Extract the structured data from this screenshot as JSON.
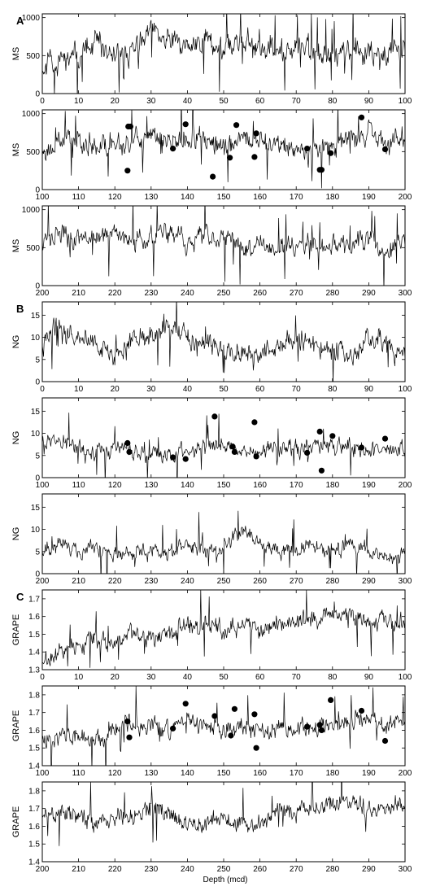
{
  "x_axis_label": "Depth (mcd)",
  "chart_data": [
    {
      "type": "line",
      "group": "A",
      "ylabel": "MS",
      "xlim": [
        0,
        100
      ],
      "ylim": [
        0,
        1050
      ],
      "yticks": [
        0,
        500,
        1000
      ],
      "xticks": [
        0,
        10,
        20,
        30,
        40,
        50,
        60,
        70,
        80,
        90,
        100
      ],
      "seed": 11,
      "base": [
        [
          0,
          380
        ],
        [
          5,
          420
        ],
        [
          10,
          500
        ],
        [
          15,
          640
        ],
        [
          20,
          520
        ],
        [
          25,
          540
        ],
        [
          30,
          760
        ],
        [
          35,
          720
        ],
        [
          40,
          600
        ],
        [
          45,
          720
        ],
        [
          50,
          560
        ],
        [
          55,
          680
        ],
        [
          60,
          600
        ],
        [
          65,
          520
        ],
        [
          70,
          640
        ],
        [
          75,
          560
        ],
        [
          80,
          480
        ],
        [
          85,
          620
        ],
        [
          90,
          520
        ],
        [
          95,
          560
        ],
        [
          100,
          600
        ]
      ],
      "noise": 170,
      "spike_prob": 0.06,
      "spike_amp": 360,
      "markers": []
    },
    {
      "type": "line",
      "group": "A",
      "ylabel": "MS",
      "xlim": [
        100,
        200
      ],
      "ylim": [
        0,
        1050
      ],
      "yticks": [
        0,
        500,
        1000
      ],
      "xticks": [
        100,
        110,
        120,
        130,
        140,
        150,
        160,
        170,
        180,
        190,
        200
      ],
      "seed": 23,
      "base": [
        [
          100,
          500
        ],
        [
          105,
          620
        ],
        [
          110,
          700
        ],
        [
          115,
          560
        ],
        [
          120,
          600
        ],
        [
          125,
          640
        ],
        [
          130,
          700
        ],
        [
          135,
          620
        ],
        [
          140,
          720
        ],
        [
          145,
          620
        ],
        [
          150,
          560
        ],
        [
          155,
          680
        ],
        [
          160,
          640
        ],
        [
          165,
          600
        ],
        [
          170,
          560
        ],
        [
          175,
          520
        ],
        [
          180,
          560
        ],
        [
          185,
          680
        ],
        [
          190,
          720
        ],
        [
          195,
          620
        ],
        [
          200,
          680
        ]
      ],
      "noise": 160,
      "spike_prob": 0.05,
      "spike_amp": 330,
      "markers": [
        [
          123.5,
          250
        ],
        [
          123.7,
          830
        ],
        [
          124.3,
          830
        ],
        [
          136,
          540
        ],
        [
          139.5,
          860
        ],
        [
          147,
          170
        ],
        [
          151.7,
          420
        ],
        [
          153.5,
          850
        ],
        [
          158.5,
          430
        ],
        [
          159,
          740
        ],
        [
          173,
          540
        ],
        [
          176.5,
          260
        ],
        [
          177,
          260
        ],
        [
          179.5,
          480
        ],
        [
          188,
          950
        ],
        [
          194.5,
          530
        ]
      ]
    },
    {
      "type": "line",
      "group": "A",
      "ylabel": "MS",
      "xlim": [
        200,
        300
      ],
      "ylim": [
        0,
        1050
      ],
      "yticks": [
        0,
        500,
        1000
      ],
      "xticks": [
        200,
        210,
        220,
        230,
        240,
        250,
        260,
        270,
        280,
        290,
        300
      ],
      "seed": 37,
      "base": [
        [
          200,
          620
        ],
        [
          205,
          700
        ],
        [
          210,
          600
        ],
        [
          215,
          640
        ],
        [
          220,
          660
        ],
        [
          225,
          600
        ],
        [
          230,
          660
        ],
        [
          235,
          680
        ],
        [
          240,
          560
        ],
        [
          245,
          660
        ],
        [
          250,
          600
        ],
        [
          255,
          520
        ],
        [
          260,
          560
        ],
        [
          265,
          500
        ],
        [
          270,
          520
        ],
        [
          275,
          560
        ],
        [
          280,
          600
        ],
        [
          285,
          520
        ],
        [
          290,
          640
        ],
        [
          295,
          380
        ],
        [
          300,
          640
        ]
      ],
      "noise": 150,
      "spike_prob": 0.06,
      "spike_amp": 380,
      "markers": []
    },
    {
      "type": "line",
      "group": "B",
      "ylabel": "NG",
      "xlim": [
        0,
        100
      ],
      "ylim": [
        0,
        18
      ],
      "yticks": [
        0,
        5,
        10,
        15
      ],
      "xticks": [
        0,
        10,
        20,
        30,
        40,
        50,
        60,
        70,
        80,
        90,
        100
      ],
      "seed": 41,
      "base": [
        [
          0,
          8
        ],
        [
          3,
          12
        ],
        [
          8,
          11
        ],
        [
          12,
          10
        ],
        [
          15,
          8
        ],
        [
          20,
          6
        ],
        [
          25,
          10
        ],
        [
          30,
          10
        ],
        [
          35,
          12
        ],
        [
          40,
          10
        ],
        [
          45,
          8
        ],
        [
          50,
          8
        ],
        [
          55,
          6
        ],
        [
          60,
          6
        ],
        [
          65,
          8
        ],
        [
          70,
          10
        ],
        [
          75,
          8
        ],
        [
          80,
          7
        ],
        [
          85,
          6
        ],
        [
          90,
          10
        ],
        [
          95,
          8
        ],
        [
          100,
          6
        ]
      ],
      "noise": 2.6,
      "spike_prob": 0.04,
      "spike_amp": 5,
      "markers": []
    },
    {
      "type": "line",
      "group": "B",
      "ylabel": "NG",
      "xlim": [
        100,
        200
      ],
      "ylim": [
        0,
        18
      ],
      "yticks": [
        0,
        5,
        10,
        15
      ],
      "xticks": [
        100,
        110,
        120,
        130,
        140,
        150,
        160,
        170,
        180,
        190,
        200
      ],
      "seed": 53,
      "base": [
        [
          100,
          9
        ],
        [
          103,
          9
        ],
        [
          108,
          7
        ],
        [
          112,
          5
        ],
        [
          116,
          6
        ],
        [
          120,
          7
        ],
        [
          125,
          6
        ],
        [
          130,
          6
        ],
        [
          135,
          5
        ],
        [
          140,
          6
        ],
        [
          145,
          7
        ],
        [
          150,
          7
        ],
        [
          155,
          7
        ],
        [
          160,
          6
        ],
        [
          165,
          7
        ],
        [
          170,
          6
        ],
        [
          175,
          7
        ],
        [
          180,
          7
        ],
        [
          185,
          7
        ],
        [
          190,
          6
        ],
        [
          195,
          6
        ],
        [
          200,
          6
        ]
      ],
      "noise": 2.2,
      "spike_prob": 0.04,
      "spike_amp": 5,
      "markers": [
        [
          123.5,
          7.8
        ],
        [
          124,
          5.8
        ],
        [
          136,
          4.6
        ],
        [
          139.5,
          4.2
        ],
        [
          147.5,
          13.8
        ],
        [
          152.5,
          7
        ],
        [
          153,
          5.8
        ],
        [
          158.5,
          12.5
        ],
        [
          159,
          4.8
        ],
        [
          173,
          5.6
        ],
        [
          176.5,
          10.4
        ],
        [
          177,
          1.6
        ],
        [
          180,
          9.4
        ],
        [
          188,
          6.8
        ],
        [
          194.5,
          8.8
        ]
      ]
    },
    {
      "type": "line",
      "group": "B",
      "ylabel": "NG",
      "xlim": [
        200,
        300
      ],
      "ylim": [
        0,
        18
      ],
      "yticks": [
        0,
        5,
        10,
        15
      ],
      "xticks": [
        200,
        210,
        220,
        230,
        240,
        250,
        260,
        270,
        280,
        290,
        300
      ],
      "seed": 67,
      "base": [
        [
          200,
          6
        ],
        [
          205,
          7
        ],
        [
          210,
          5
        ],
        [
          215,
          6
        ],
        [
          220,
          5
        ],
        [
          225,
          5
        ],
        [
          230,
          5
        ],
        [
          235,
          5
        ],
        [
          240,
          6
        ],
        [
          245,
          5
        ],
        [
          250,
          6
        ],
        [
          255,
          10
        ],
        [
          260,
          7
        ],
        [
          265,
          5
        ],
        [
          270,
          6
        ],
        [
          275,
          6
        ],
        [
          280,
          5
        ],
        [
          285,
          6
        ],
        [
          290,
          5
        ],
        [
          295,
          4
        ],
        [
          300,
          4
        ]
      ],
      "noise": 2.0,
      "spike_prob": 0.03,
      "spike_amp": 5,
      "markers": []
    },
    {
      "type": "line",
      "group": "C",
      "ylabel": "GRAPE",
      "xlim": [
        0,
        100
      ],
      "ylim": [
        1.3,
        1.75
      ],
      "yticks": [
        1.3,
        1.4,
        1.5,
        1.6,
        1.7
      ],
      "xticks": [
        0,
        10,
        20,
        30,
        40,
        50,
        60,
        70,
        80,
        90,
        100
      ],
      "seed": 79,
      "base": [
        [
          0,
          1.36
        ],
        [
          5,
          1.4
        ],
        [
          10,
          1.45
        ],
        [
          15,
          1.47
        ],
        [
          20,
          1.46
        ],
        [
          25,
          1.5
        ],
        [
          30,
          1.48
        ],
        [
          35,
          1.5
        ],
        [
          40,
          1.54
        ],
        [
          45,
          1.56
        ],
        [
          50,
          1.5
        ],
        [
          55,
          1.56
        ],
        [
          60,
          1.52
        ],
        [
          65,
          1.56
        ],
        [
          70,
          1.58
        ],
        [
          75,
          1.58
        ],
        [
          80,
          1.62
        ],
        [
          85,
          1.6
        ],
        [
          90,
          1.56
        ],
        [
          95,
          1.58
        ],
        [
          100,
          1.56
        ]
      ],
      "noise": 0.06,
      "spike_prob": 0.04,
      "spike_amp": 0.14,
      "markers": []
    },
    {
      "type": "line",
      "group": "C",
      "ylabel": "GRAPE",
      "xlim": [
        100,
        200
      ],
      "ylim": [
        1.4,
        1.85
      ],
      "yticks": [
        1.4,
        1.5,
        1.6,
        1.7,
        1.8
      ],
      "xticks": [
        100,
        110,
        120,
        130,
        140,
        150,
        160,
        170,
        180,
        190,
        200
      ],
      "seed": 83,
      "base": [
        [
          100,
          1.55
        ],
        [
          105,
          1.57
        ],
        [
          110,
          1.58
        ],
        [
          115,
          1.56
        ],
        [
          120,
          1.6
        ],
        [
          125,
          1.64
        ],
        [
          130,
          1.62
        ],
        [
          135,
          1.6
        ],
        [
          140,
          1.66
        ],
        [
          145,
          1.62
        ],
        [
          150,
          1.6
        ],
        [
          155,
          1.62
        ],
        [
          160,
          1.58
        ],
        [
          165,
          1.62
        ],
        [
          170,
          1.62
        ],
        [
          175,
          1.62
        ],
        [
          180,
          1.64
        ],
        [
          185,
          1.66
        ],
        [
          190,
          1.66
        ],
        [
          195,
          1.62
        ],
        [
          200,
          1.66
        ]
      ],
      "noise": 0.06,
      "spike_prob": 0.04,
      "spike_amp": 0.14,
      "markers": [
        [
          123.5,
          1.65
        ],
        [
          124,
          1.56
        ],
        [
          136,
          1.61
        ],
        [
          139.5,
          1.75
        ],
        [
          147.5,
          1.68
        ],
        [
          152,
          1.57
        ],
        [
          153,
          1.72
        ],
        [
          158.5,
          1.69
        ],
        [
          159,
          1.5
        ],
        [
          173,
          1.62
        ],
        [
          176.5,
          1.63
        ],
        [
          177,
          1.6
        ],
        [
          179.5,
          1.77
        ],
        [
          188,
          1.71
        ],
        [
          194.5,
          1.54
        ]
      ]
    },
    {
      "type": "line",
      "group": "C",
      "ylabel": "GRAPE",
      "xlim": [
        200,
        300
      ],
      "ylim": [
        1.4,
        1.85
      ],
      "yticks": [
        1.4,
        1.5,
        1.6,
        1.7,
        1.8
      ],
      "xticks": [
        200,
        210,
        220,
        230,
        240,
        250,
        260,
        270,
        280,
        290,
        300
      ],
      "seed": 97,
      "base": [
        [
          200,
          1.7
        ],
        [
          205,
          1.68
        ],
        [
          210,
          1.64
        ],
        [
          215,
          1.62
        ],
        [
          220,
          1.64
        ],
        [
          225,
          1.66
        ],
        [
          230,
          1.7
        ],
        [
          235,
          1.68
        ],
        [
          240,
          1.6
        ],
        [
          245,
          1.62
        ],
        [
          250,
          1.64
        ],
        [
          255,
          1.62
        ],
        [
          260,
          1.62
        ],
        [
          265,
          1.68
        ],
        [
          270,
          1.68
        ],
        [
          275,
          1.7
        ],
        [
          280,
          1.72
        ],
        [
          285,
          1.74
        ],
        [
          290,
          1.68
        ],
        [
          295,
          1.7
        ],
        [
          300,
          1.74
        ]
      ],
      "noise": 0.06,
      "spike_prob": 0.03,
      "spike_amp": 0.14,
      "markers": []
    }
  ]
}
